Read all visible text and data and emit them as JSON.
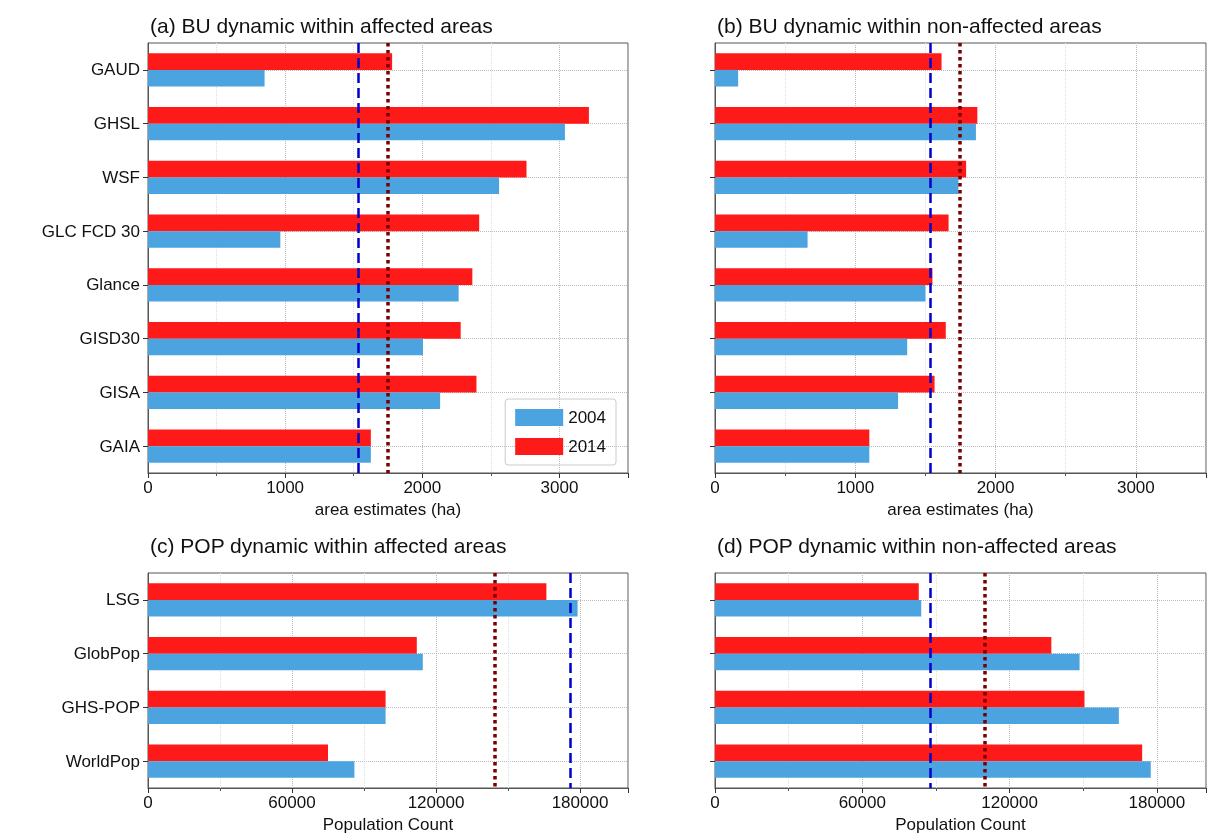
{
  "chart_data": [
    {
      "type": "bar",
      "orientation": "horizontal",
      "title": "(a) BU dynamic within affected areas",
      "xlabel": "area estimates (ha)",
      "categories": [
        "GAUD",
        "GHSL",
        "WSF",
        "GLC FCD 30",
        "Glance",
        "GISD30",
        "GISA",
        "GAIA"
      ],
      "series": [
        {
          "name": "2004",
          "color": "#4ba3e0",
          "values": [
            850,
            3040,
            2560,
            965,
            2265,
            2005,
            2130,
            1625
          ]
        },
        {
          "name": "2014",
          "color": "#ff1a1a",
          "values": [
            1780,
            3215,
            2760,
            2415,
            2365,
            2280,
            2395,
            1625
          ]
        }
      ],
      "xlim": [
        0,
        3500
      ],
      "xticks": [
        0,
        1000,
        2000,
        3000
      ],
      "grid": true,
      "legend": "bottom right",
      "ref_lines": [
        {
          "axis": "x",
          "value": 1535,
          "color": "#0000cc",
          "line_style": "dashed"
        },
        {
          "axis": "x",
          "value": 1745,
          "color": "#7a0000",
          "line_style": "dotted"
        }
      ]
    },
    {
      "type": "bar",
      "orientation": "horizontal",
      "title": "(b) BU dynamic within non-affected areas",
      "xlabel": "area estimates (ha)",
      "categories": [
        null,
        null,
        null,
        null,
        null,
        null,
        null,
        null
      ],
      "series": [
        {
          "color": "#4ba3e0",
          "values": [
            165,
            1860,
            1735,
            660,
            1500,
            1370,
            1305,
            1100
          ]
        },
        {
          "color": "#ff1a1a",
          "values": [
            1615,
            1870,
            1790,
            1665,
            1550,
            1645,
            1565,
            1100
          ]
        }
      ],
      "xlim": [
        0,
        3500
      ],
      "xticks": [
        0,
        1000,
        2000,
        3000
      ],
      "grid": true,
      "tick_labels": "x",
      "ref_lines": [
        {
          "axis": "x",
          "value": 1535,
          "color": "#0000cc",
          "line_style": "dashed"
        },
        {
          "axis": "x",
          "value": 1745,
          "color": "#7a0000",
          "line_style": "dotted"
        }
      ]
    },
    {
      "type": "bar",
      "orientation": "horizontal",
      "title": "(c) POP dynamic within affected areas",
      "xlabel": "Population Count",
      "categories": [
        "LSG",
        "GlobPop",
        "GHS-POP",
        "WorldPop"
      ],
      "series": [
        {
          "color": "#4ba3e0",
          "values": [
            179000,
            114500,
            99000,
            86000
          ]
        },
        {
          "color": "#ff1a1a",
          "values": [
            166000,
            112000,
            99000,
            75000
          ]
        }
      ],
      "xlim": [
        0,
        200000
      ],
      "xticks": [
        0,
        60000,
        120000,
        180000
      ],
      "grid": true,
      "ref_lines": [
        {
          "axis": "x",
          "value": 144500,
          "color": "#7a0000",
          "line_style": "dotted"
        },
        {
          "axis": "x",
          "value": 176000,
          "color": "#0000cc",
          "line_style": "dashed"
        }
      ]
    },
    {
      "type": "bar",
      "orientation": "horizontal",
      "title": "(d) POP dynamic within non-affected areas",
      "xlabel": "Population Count",
      "categories": [
        null,
        null,
        null,
        null
      ],
      "series": [
        {
          "color": "#4ba3e0",
          "values": [
            84000,
            148500,
            164500,
            177500
          ]
        },
        {
          "color": "#ff1a1a",
          "values": [
            83000,
            137000,
            150500,
            174000
          ]
        }
      ],
      "xlim": [
        0,
        200000
      ],
      "xticks": [
        0,
        60000,
        120000,
        180000
      ],
      "grid": true,
      "tick_labels": "x",
      "ref_lines": [
        {
          "axis": "x",
          "value": 87500,
          "color": "#0000cc",
          "line_style": "dashed"
        },
        {
          "axis": "x",
          "value": 110000,
          "color": "#7a0000",
          "line_style": "dotted"
        }
      ]
    }
  ]
}
